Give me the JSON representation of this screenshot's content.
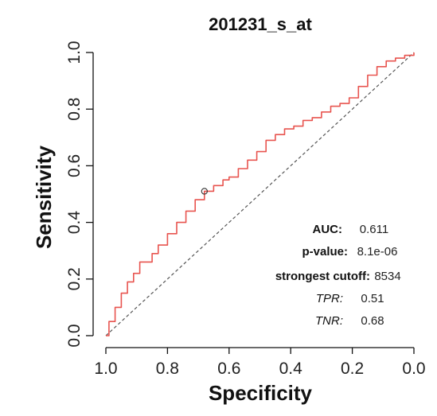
{
  "chart_data": {
    "type": "line",
    "title": "201231_s_at",
    "xlabel": "Specificity",
    "ylabel": "Sensitivity",
    "xlim": [
      1.0,
      0.0
    ],
    "ylim": [
      0.0,
      1.0
    ],
    "x_reversed": true,
    "x_ticks": [
      "1.0",
      "0.8",
      "0.6",
      "0.4",
      "0.2",
      "0.0"
    ],
    "y_ticks": [
      "0.0",
      "0.2",
      "0.4",
      "0.6",
      "0.8",
      "1.0"
    ],
    "x_tick_values": [
      1.0,
      0.8,
      0.6,
      0.4,
      0.2,
      0.0
    ],
    "y_tick_values": [
      0.0,
      0.2,
      0.4,
      0.6,
      0.8,
      1.0
    ],
    "grid": false,
    "series": [
      {
        "color": "#e8544f",
        "specificity": [
          1.0,
          0.99,
          0.97,
          0.95,
          0.93,
          0.91,
          0.89,
          0.87,
          0.85,
          0.83,
          0.8,
          0.77,
          0.74,
          0.71,
          0.68,
          0.65,
          0.62,
          0.6,
          0.57,
          0.54,
          0.51,
          0.48,
          0.45,
          0.42,
          0.39,
          0.36,
          0.33,
          0.3,
          0.27,
          0.24,
          0.21,
          0.18,
          0.15,
          0.12,
          0.09,
          0.06,
          0.03,
          0.0
        ],
        "sensitivity": [
          0.0,
          0.05,
          0.1,
          0.15,
          0.19,
          0.22,
          0.26,
          0.26,
          0.29,
          0.32,
          0.36,
          0.4,
          0.44,
          0.48,
          0.51,
          0.53,
          0.55,
          0.56,
          0.59,
          0.62,
          0.65,
          0.69,
          0.71,
          0.73,
          0.74,
          0.76,
          0.77,
          0.79,
          0.81,
          0.82,
          0.84,
          0.88,
          0.92,
          0.95,
          0.97,
          0.98,
          0.99,
          1.0
        ]
      }
    ],
    "reference_line": {
      "from": [
        1.0,
        0.0
      ],
      "to": [
        0.0,
        1.0
      ],
      "style": "dashed",
      "color": "#555555"
    },
    "cutoff_point": {
      "specificity": 0.68,
      "sensitivity": 0.51
    },
    "annotations": [
      {
        "key": "AUC:",
        "value": "0.611",
        "italic": false
      },
      {
        "key": "p-value:",
        "value": "8.1e-06",
        "italic": false
      },
      {
        "key": "strongest cutoff:",
        "value": "8534",
        "italic": false
      },
      {
        "key": "TPR:",
        "value": "0.51",
        "italic": true
      },
      {
        "key": "TNR:",
        "value": "0.68",
        "italic": true
      }
    ]
  }
}
